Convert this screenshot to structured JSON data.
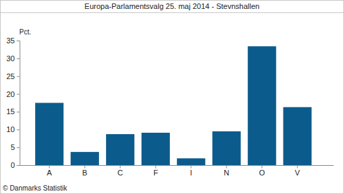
{
  "chart_data": {
    "type": "bar",
    "title": "Europa-Parlamentsvalg 25. maj 2014 - Stevnshallen",
    "ylabel": "Pct.",
    "source": "© Danmarks Statistik",
    "categories": [
      "A",
      "B",
      "C",
      "F",
      "I",
      "N",
      "O",
      "V"
    ],
    "values": [
      17.5,
      3.7,
      8.7,
      9.1,
      1.9,
      9.5,
      33.4,
      16.3
    ],
    "color": "#0b5c8c",
    "ylim": [
      0,
      35
    ],
    "yticks": [
      0,
      5,
      10,
      15,
      20,
      25,
      30,
      35
    ],
    "grid": false
  }
}
